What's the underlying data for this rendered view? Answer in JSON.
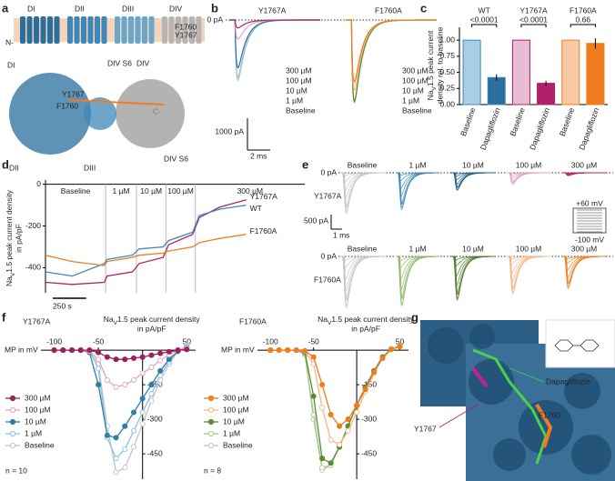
{
  "panel_labels": [
    "a",
    "b",
    "c",
    "d",
    "e",
    "f",
    "g"
  ],
  "structure": {
    "domains": [
      "DI",
      "DII",
      "DIII",
      "DIV"
    ],
    "mutations": [
      "F1760",
      "Y1767"
    ],
    "termini": [
      "N-",
      "C-"
    ],
    "views": [
      "DI",
      "DIV S6",
      "DIV",
      "Y1767",
      "F1760",
      "DII",
      "DIII",
      "DIV S6"
    ]
  },
  "chart_data": [
    {
      "type": "traces",
      "zero_label": "0 pA",
      "scale_y": {
        "value": 1000,
        "label": "1000 pA"
      },
      "scale_x": {
        "value": 2,
        "label": "2 ms"
      },
      "panels": [
        {
          "name": "Y1767A",
          "color": "#b0216a",
          "series": [
            {
              "name": "300 µM",
              "color": "#b0216a",
              "peak": -250
            },
            {
              "name": "100 µM",
              "color": "#e0a3c3",
              "peak": -600
            },
            {
              "name": "10 µM",
              "color": "#2a6f9e",
              "peak": -1500
            },
            {
              "name": "1 µM",
              "color": "#8cc3e0",
              "peak": -1800
            },
            {
              "name": "Baseline",
              "color": "#c4c4c4",
              "peak": -1900
            }
          ]
        },
        {
          "name": "F1760A",
          "color": "#f07c1e",
          "series": [
            {
              "name": "300 µM",
              "color": "#f07c1e",
              "peak": -1950
            },
            {
              "name": "100 µM",
              "color": "#f6b683",
              "peak": -2200
            },
            {
              "name": "10 µM",
              "color": "#5c8a2e",
              "peak": -2550
            },
            {
              "name": "1 µM",
              "color": "#a8c98a",
              "peak": -2600
            },
            {
              "name": "Baseline",
              "color": "#c4c4c4",
              "peak": -2600
            }
          ]
        }
      ]
    },
    {
      "type": "bar",
      "groups": [
        {
          "name": "WT",
          "color": "#3d87b9",
          "p_value": "<0.0001"
        },
        {
          "name": "Y1767A",
          "color": "#b0216a",
          "p_value": "<0.0001"
        },
        {
          "name": "F1760A",
          "color": "#f07c1e",
          "p_value": "0.66"
        }
      ],
      "categories": [
        "Baseline",
        "Dapagliflozin",
        "Baseline",
        "Dapagliflozin",
        "Baseline",
        "Dapagliflozin"
      ],
      "values": [
        1,
        0.42,
        1,
        0.33,
        1,
        0.95
      ],
      "errors": [
        0,
        0.05,
        0,
        0.04,
        0,
        0.08
      ],
      "bar_colors": [
        "#a9cfe6",
        "#2a6f9e",
        "#e8bcd2",
        "#b0216a",
        "#f8c9a2",
        "#f07c1e"
      ],
      "y_label": {
        "na": "Na",
        "sub": "V",
        "rest": "1.5 peak current",
        "line2": "density rel. to baseline"
      },
      "ylim": [
        0,
        1.2
      ],
      "yticks": [
        {
          "value": 0,
          "label": "0.00"
        },
        {
          "value": 0.25,
          "label": "0.25"
        },
        {
          "value": 0.5,
          "label": "0.50"
        },
        {
          "value": 0.75,
          "label": "0.75"
        },
        {
          "value": 1,
          "label": "1.00"
        }
      ]
    },
    {
      "type": "line",
      "y_label": {
        "na": "Na",
        "sub": "V",
        "rest": "1.5 peak current density",
        "line2": "in pA/pF"
      },
      "phases": [
        {
          "label": "Baseline",
          "start": 0
        },
        {
          "label": "1 µM",
          "start": 450
        },
        {
          "label": "10 µM",
          "start": 680
        },
        {
          "label": "100 µM",
          "start": 900
        },
        {
          "label": "300 µM",
          "start": 1120
        }
      ],
      "x": [
        0,
        200,
        440,
        460,
        650,
        700,
        880,
        920,
        1100,
        1150,
        1300,
        1500
      ],
      "xlim": [
        0,
        1700
      ],
      "ylim": [
        -520,
        20
      ],
      "yticks": [
        -400,
        -200,
        0
      ],
      "scale_x": {
        "value": 250,
        "label": "250 s"
      },
      "series": [
        {
          "name": "Y1767A",
          "color": "#b0216a",
          "values": [
            -470,
            -480,
            -470,
            -440,
            -420,
            -380,
            -350,
            -290,
            -240,
            -160,
            -110,
            -75
          ]
        },
        {
          "name": "WT",
          "color": "#3d87b9",
          "values": [
            -420,
            -440,
            -380,
            -360,
            -340,
            -310,
            -300,
            -270,
            -230,
            -150,
            -120,
            -100
          ]
        },
        {
          "name": "F1760A",
          "color": "#f07c1e",
          "values": [
            -340,
            -370,
            -390,
            -370,
            -350,
            -340,
            -330,
            -320,
            -300,
            -280,
            -260,
            -240
          ]
        }
      ]
    },
    {
      "type": "trace_family",
      "scale_y": {
        "value": 500,
        "label": "500 pA"
      },
      "scale_x": {
        "value": 1,
        "label": "1 ms"
      },
      "protocol": [
        "+60 mV",
        "-100 mV"
      ],
      "rows": [
        {
          "name": "Y1767A",
          "color": "#b0216a",
          "zero_label": "0 pA",
          "conditions": [
            {
              "name": "Baseline",
              "color": "#c4c4c4",
              "peaks": [
                -100,
                -300,
                -600,
                -900,
                -1200,
                -1400,
                -1350,
                -1200
              ]
            },
            {
              "name": "1 µM",
              "color": "#3d87b9",
              "peaks": [
                -90,
                -270,
                -540,
                -800,
                -1080,
                -1260,
                -1200,
                -1080
              ]
            },
            {
              "name": "10 µM",
              "color": "#1f5f8a",
              "peaks": [
                -40,
                -120,
                -250,
                -400,
                -520,
                -600,
                -580,
                -500
              ]
            },
            {
              "name": "100 µM",
              "color": "#e0a3c3",
              "peaks": [
                -30,
                -80,
                -160,
                -250,
                -330,
                -400,
                -380,
                -330
              ]
            },
            {
              "name": "300 µM",
              "color": "#b0216a",
              "peaks": [
                -10,
                -20,
                -40,
                -60,
                -80,
                -100,
                -90,
                -80
              ]
            }
          ]
        },
        {
          "name": "F1760A",
          "color": "#f07c1e",
          "zero_label": "0 pA",
          "conditions": [
            {
              "name": "Baseline",
              "color": "#c4c4c4",
              "peaks": [
                -150,
                -400,
                -800,
                -1200,
                -1500,
                -1750,
                -1700,
                -1500
              ]
            },
            {
              "name": "1 µM",
              "color": "#8fb86a",
              "peaks": [
                -140,
                -380,
                -780,
                -1150,
                -1450,
                -1700,
                -1650,
                -1450
              ]
            },
            {
              "name": "10 µM",
              "color": "#4f7a26",
              "peaks": [
                -120,
                -330,
                -680,
                -1000,
                -1300,
                -1500,
                -1450,
                -1300
              ]
            },
            {
              "name": "100 µM",
              "color": "#f6b683",
              "peaks": [
                -100,
                -280,
                -580,
                -880,
                -1120,
                -1300,
                -1250,
                -1100
              ]
            },
            {
              "name": "300 µM",
              "color": "#f07c1e",
              "peaks": [
                -80,
                -230,
                -480,
                -740,
                -950,
                -1100,
                -1050,
                -930
              ]
            }
          ]
        }
      ]
    },
    {
      "type": "line",
      "title": "Y1767A",
      "title_color": "#b0216a",
      "x_label": "MP in mV",
      "n_label": "n = 10",
      "y_label": {
        "na": "Na",
        "sub": "V",
        "rest": "1.5 peak current density",
        "line2": "in pA/pF"
      },
      "x": [
        -100,
        -90,
        -80,
        -70,
        -60,
        -50,
        -40,
        -30,
        -20,
        -10,
        0,
        10,
        20,
        30,
        40,
        50
      ],
      "xlim": [
        -115,
        60
      ],
      "xticks": [
        -100,
        -50,
        50
      ],
      "ylim": [
        -560,
        20
      ],
      "yticks": [
        -150,
        -300,
        -450
      ],
      "series": [
        {
          "name": "300 µM",
          "color": "#9e1f5a",
          "values": [
            0,
            0,
            0,
            0,
            0,
            -10,
            -30,
            -40,
            -40,
            -35,
            -30,
            -22,
            -14,
            -7,
            0,
            3
          ]
        },
        {
          "name": "100 µM",
          "color": "#e0a3c3",
          "values": [
            0,
            0,
            0,
            0,
            -5,
            -40,
            -130,
            -160,
            -150,
            -130,
            -100,
            -75,
            -45,
            -20,
            0,
            8
          ]
        },
        {
          "name": "10 µM",
          "color": "#2f7fa8",
          "values": [
            0,
            0,
            0,
            0,
            -10,
            -150,
            -370,
            -380,
            -330,
            -270,
            -210,
            -150,
            -90,
            -40,
            -5,
            10
          ]
        },
        {
          "name": "1 µM",
          "color": "#8cc3e0",
          "values": [
            0,
            0,
            0,
            0,
            -5,
            -80,
            -380,
            -470,
            -430,
            -350,
            -270,
            -190,
            -110,
            -50,
            -5,
            15
          ]
        },
        {
          "name": "Baseline",
          "color": "#c4c4c4",
          "values": [
            0,
            0,
            0,
            0,
            -5,
            -60,
            -330,
            -530,
            -510,
            -420,
            -320,
            -220,
            -130,
            -60,
            -5,
            20
          ]
        }
      ]
    },
    {
      "type": "line",
      "title": "F1760A",
      "title_color": "#f07c1e",
      "x_label": "MP in mV",
      "n_label": "n = 8",
      "y_label": {
        "na": "Na",
        "sub": "V",
        "rest": "1.5 peak current density",
        "line2": "in pA/pF"
      },
      "x": [
        -100,
        -90,
        -80,
        -70,
        -60,
        -50,
        -40,
        -30,
        -20,
        -10,
        0,
        10,
        20,
        30,
        40,
        50
      ],
      "xlim": [
        -115,
        60
      ],
      "xticks": [
        -100,
        -50,
        50
      ],
      "ylim": [
        -560,
        20
      ],
      "yticks": [
        -150,
        -300,
        -450
      ],
      "series": [
        {
          "name": "300 µM",
          "color": "#f07c1e",
          "values": [
            0,
            0,
            0,
            0,
            -3,
            -30,
            -150,
            -280,
            -330,
            -300,
            -240,
            -170,
            -95,
            -35,
            3,
            15
          ]
        },
        {
          "name": "100 µM",
          "color": "#f6b683",
          "values": [
            0,
            0,
            0,
            0,
            -5,
            -60,
            -250,
            -390,
            -410,
            -350,
            -270,
            -180,
            -100,
            -35,
            5,
            18
          ]
        },
        {
          "name": "10 µM",
          "color": "#5c8a2e",
          "values": [
            0,
            0,
            0,
            0,
            -10,
            -200,
            -470,
            -490,
            -420,
            -330,
            -240,
            -160,
            -90,
            -30,
            5,
            20
          ]
        },
        {
          "name": "1 µM",
          "color": "#a8c98a",
          "values": [
            0,
            0,
            0,
            0,
            -15,
            -280,
            -510,
            -500,
            -420,
            -330,
            -240,
            -160,
            -90,
            -30,
            5,
            20
          ]
        },
        {
          "name": "Baseline",
          "color": "#c4c4c4",
          "values": [
            0,
            0,
            0,
            0,
            -20,
            -300,
            -520,
            -500,
            -420,
            -330,
            -240,
            -160,
            -90,
            -30,
            5,
            20
          ]
        }
      ]
    }
  ],
  "docking": {
    "ligand": "Dapagliflozin",
    "residues": [
      "F1760",
      "Y1767"
    ]
  }
}
